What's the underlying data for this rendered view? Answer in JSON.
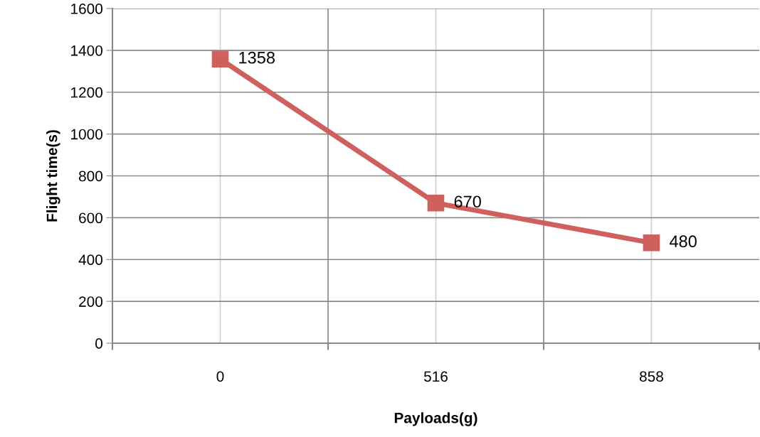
{
  "chart_data": {
    "type": "line",
    "xlabel": "Payloads(g)",
    "ylabel": "Flight time(s)",
    "categories": [
      "0",
      "516",
      "858"
    ],
    "series": [
      {
        "color": "#d0605e",
        "values": [
          1358,
          670,
          480
        ]
      }
    ],
    "ylim": [
      0,
      1600
    ],
    "yticks": [
      0,
      200,
      400,
      600,
      800,
      1000,
      1200,
      1400,
      1600
    ],
    "grid": true,
    "marker": "square",
    "line_style": "solid",
    "data_labels": true,
    "legend": false
  }
}
